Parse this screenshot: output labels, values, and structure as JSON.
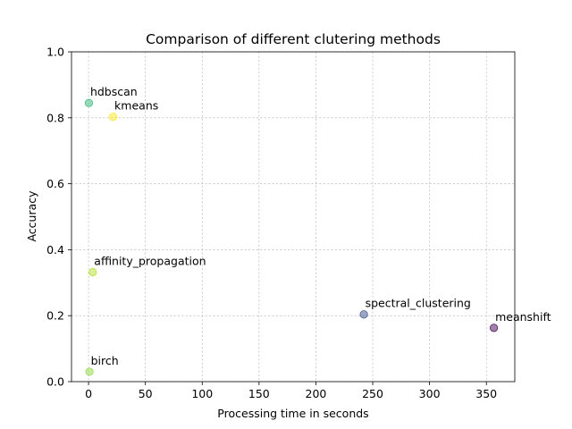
{
  "chart_data": {
    "type": "scatter",
    "title": "Comparison of different clutering methods",
    "xlabel": "Processing time in seconds",
    "ylabel": "Accuracy",
    "xlim": [
      -15,
      375
    ],
    "ylim": [
      0,
      1.0
    ],
    "xticks": [
      0,
      50,
      100,
      150,
      200,
      250,
      300,
      350
    ],
    "yticks": [
      0.0,
      0.2,
      0.4,
      0.6,
      0.8,
      1.0
    ],
    "grid": true,
    "point_opacity": 0.5,
    "points": [
      {
        "label": "hdbscan",
        "x": 0.3,
        "y": 0.845,
        "color": "#35b779"
      },
      {
        "label": "kmeans",
        "x": 21.6,
        "y": 0.803,
        "color": "#fde725"
      },
      {
        "label": "affinity_propagation",
        "x": 3.7,
        "y": 0.332,
        "color": "#b5de2b"
      },
      {
        "label": "spectral_clustering",
        "x": 242.2,
        "y": 0.204,
        "color": "#3b528b"
      },
      {
        "label": "meanshift",
        "x": 356.6,
        "y": 0.163,
        "color": "#440154"
      },
      {
        "label": "birch",
        "x": 0.8,
        "y": 0.03,
        "color": "#90d743"
      }
    ]
  }
}
